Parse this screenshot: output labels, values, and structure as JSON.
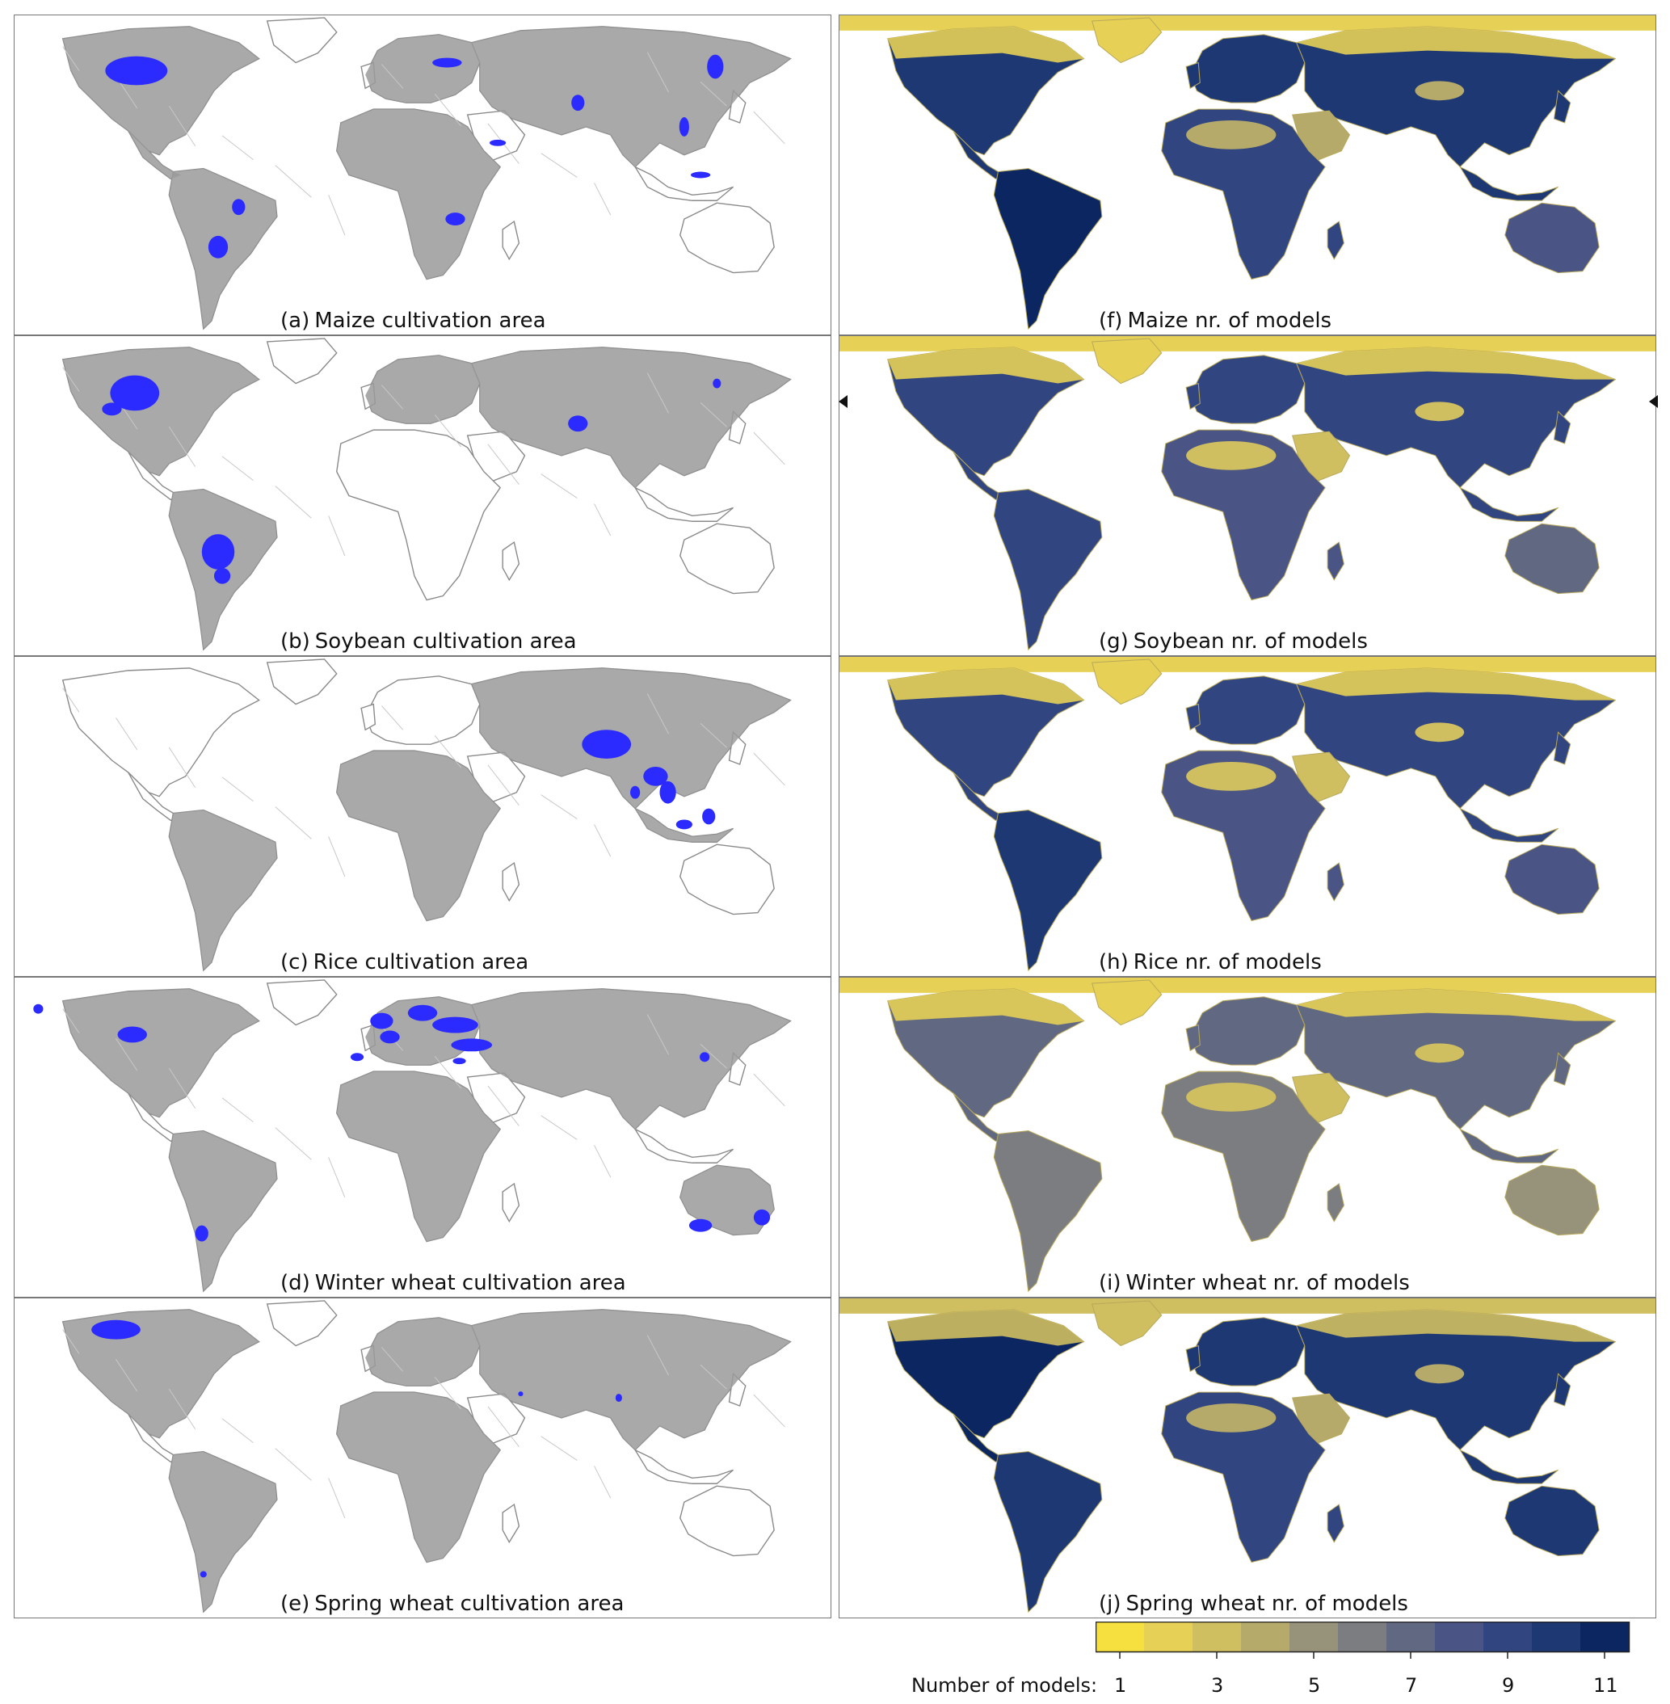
{
  "colors": {
    "cultivated": "#9a9a9a",
    "highlight": "#2b2bff",
    "border": "#8a8a8a",
    "ocean": "#ffffff",
    "scale": [
      "#f5e040",
      "#e6d055",
      "#cfbf60",
      "#b5aa6a",
      "#97937a",
      "#7c7d80",
      "#616882",
      "#4a5585",
      "#314580",
      "#1e3873",
      "#0b2660"
    ]
  },
  "left_panels": [
    {
      "letter": "(a)",
      "title": "Maize cultivation area",
      "highlight": "maize"
    },
    {
      "letter": "(b)",
      "title": "Soybean cultivation area",
      "highlight": "soy"
    },
    {
      "letter": "(c)",
      "title": "Rice cultivation area",
      "highlight": "rice"
    },
    {
      "letter": "(d)",
      "title": "Winter wheat cultivation area",
      "highlight": "wwheat"
    },
    {
      "letter": "(e)",
      "title": "Spring wheat cultivation area",
      "highlight": "swheat"
    }
  ],
  "right_panels": [
    {
      "letter": "(f)",
      "title": "Maize nr. of models",
      "levels": {
        "na": 10,
        "sa": 11,
        "eu": 10,
        "as": 10,
        "af": 9,
        "au": 8,
        "north": 2,
        "desert": 4
      }
    },
    {
      "letter": "(g)",
      "title": "Soybean nr. of models",
      "levels": {
        "na": 9,
        "sa": 9,
        "eu": 9,
        "as": 9,
        "af": 8,
        "au": 7,
        "north": 2,
        "desert": 3
      }
    },
    {
      "letter": "(h)",
      "title": "Rice nr. of models",
      "levels": {
        "na": 9,
        "sa": 10,
        "eu": 9,
        "as": 9,
        "af": 8,
        "au": 8,
        "north": 2,
        "desert": 3
      }
    },
    {
      "letter": "(i)",
      "title": "Winter wheat nr. of models",
      "levels": {
        "na": 7,
        "sa": 6,
        "eu": 7,
        "as": 7,
        "af": 6,
        "au": 5,
        "north": 2,
        "desert": 3
      }
    },
    {
      "letter": "(j)",
      "title": "Spring wheat nr. of models",
      "levels": {
        "na": 11,
        "sa": 10,
        "eu": 10,
        "as": 10,
        "af": 9,
        "au": 10,
        "north": 3,
        "desert": 4
      }
    }
  ],
  "colorbar": {
    "label": "Number of models:",
    "ticks": [
      "1",
      "3",
      "5",
      "7",
      "9",
      "11"
    ],
    "min": 1,
    "max": 11
  }
}
